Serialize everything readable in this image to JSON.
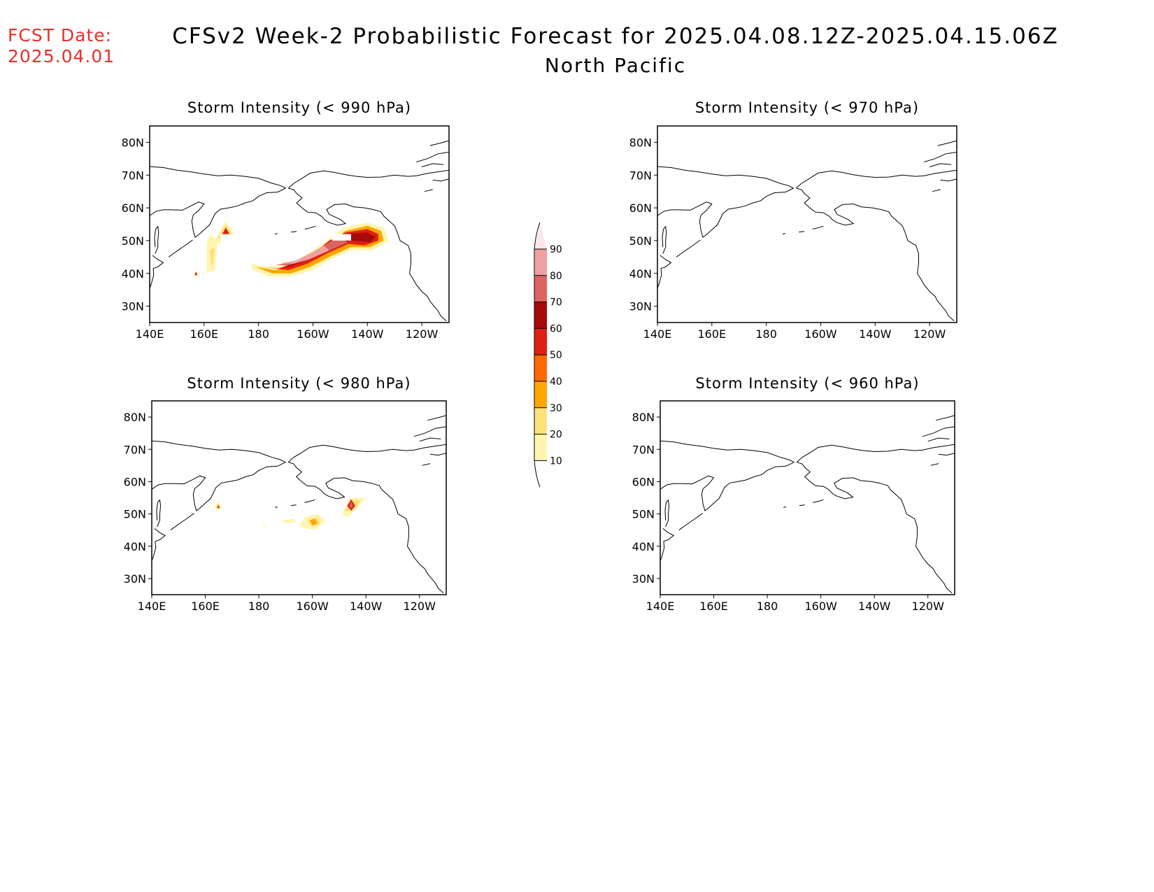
{
  "fcst_date": {
    "label": "FCST Date:",
    "value": "2025.04.01"
  },
  "title": "CFSv2 Week-2 Probabilistic Forecast for 2025.04.08.12Z-2025.04.15.06Z",
  "subtitle": "North Pacific",
  "map_extent": {
    "lon_min": 140,
    "lon_max": 250,
    "lat_min": 25,
    "lat_max": 85
  },
  "lon_ticks": [
    {
      "value": 140,
      "label": "140E"
    },
    {
      "value": 160,
      "label": "160E"
    },
    {
      "value": 180,
      "label": "180"
    },
    {
      "value": 200,
      "label": "160W"
    },
    {
      "value": 220,
      "label": "140W"
    },
    {
      "value": 240,
      "label": "120W"
    }
  ],
  "lat_ticks": [
    {
      "value": 30,
      "label": "30N"
    },
    {
      "value": 40,
      "label": "40N"
    },
    {
      "value": 50,
      "label": "50N"
    },
    {
      "value": 60,
      "label": "60N"
    },
    {
      "value": 70,
      "label": "70N"
    },
    {
      "value": 80,
      "label": "80N"
    }
  ],
  "colorbar": {
    "levels": [
      10,
      20,
      30,
      40,
      50,
      60,
      70,
      80,
      90
    ],
    "labels": [
      "10",
      "20",
      "30",
      "40",
      "50",
      "60",
      "70",
      "80",
      "90"
    ],
    "colors": [
      "#fff5b0",
      "#fce27a",
      "#ffa500",
      "#ff6a00",
      "#e02010",
      "#a80a0a",
      "#dc6464",
      "#f0a0a0",
      "#fde6ea"
    ]
  },
  "panels": [
    {
      "id": "p990",
      "title": "Storm Intensity (< 990 hPa)",
      "regions": [
        {
          "level": 10,
          "poly": [
            [
              164,
              50
            ],
            [
              168,
              56
            ],
            [
              172,
              51
            ],
            [
              168,
              48
            ]
          ]
        },
        {
          "level": 20,
          "poly": [
            [
              165,
              51
            ],
            [
              168,
              55
            ],
            [
              171,
              51
            ],
            [
              168,
              49
            ]
          ]
        },
        {
          "level": 50,
          "poly": [
            [
              166,
              51
            ],
            [
              168,
              54
            ],
            [
              170,
              51
            ]
          ]
        },
        {
          "level": 10,
          "poly": [
            [
              161,
              49
            ],
            [
              162,
              52
            ],
            [
              165,
              50
            ],
            [
              164,
              41
            ],
            [
              161,
              40
            ]
          ]
        },
        {
          "level": 20,
          "poly": [
            [
              162,
              47
            ],
            [
              164,
              48
            ],
            [
              163,
              41
            ]
          ]
        },
        {
          "level": 10,
          "poly": [
            [
              177,
              43
            ],
            [
              184,
              42
            ],
            [
              192,
              43
            ],
            [
              198,
              46
            ],
            [
              205,
              50
            ],
            [
              211,
              54
            ],
            [
              220,
              55.5
            ],
            [
              226,
              54
            ],
            [
              228,
              50
            ],
            [
              222,
              47
            ],
            [
              214,
              47
            ],
            [
              206,
              44
            ],
            [
              200,
              41
            ],
            [
              192,
              39
            ],
            [
              184,
              39
            ],
            [
              178,
              41
            ]
          ]
        },
        {
          "level": 30,
          "poly": [
            [
              179,
              42
            ],
            [
              186,
              41
            ],
            [
              193,
              42
            ],
            [
              199,
              45
            ],
            [
              206,
              49
            ],
            [
              212,
              53
            ],
            [
              220,
              54.5
            ],
            [
              225,
              53
            ],
            [
              226,
              50
            ],
            [
              221,
              48
            ],
            [
              214,
              48
            ],
            [
              206,
              45
            ],
            [
              199,
              42
            ],
            [
              192,
              40
            ],
            [
              185,
              40
            ]
          ]
        },
        {
          "level": 50,
          "poly": [
            [
              181,
              42
            ],
            [
              187,
              41.5
            ],
            [
              194,
              43
            ],
            [
              200,
              46
            ],
            [
              206,
              50
            ],
            [
              212,
              52.5
            ],
            [
              220,
              53.5
            ],
            [
              224,
              52
            ],
            [
              224,
              50
            ],
            [
              219,
              48.5
            ],
            [
              213,
              49
            ],
            [
              205,
              46
            ],
            [
              198,
              43
            ],
            [
              191,
              41
            ]
          ]
        },
        {
          "level": 60,
          "poly": [
            [
              183,
              42
            ],
            [
              189,
              42
            ],
            [
              196,
              44
            ],
            [
              202,
              47
            ],
            [
              207,
              50
            ],
            [
              211,
              52
            ],
            [
              220,
              52.5
            ],
            [
              223,
              51
            ],
            [
              221,
              49.5
            ],
            [
              214,
              50
            ],
            [
              205,
              47
            ],
            [
              198,
              44
            ],
            [
              191,
              42
            ]
          ]
        },
        {
          "level": 70,
          "poly": [
            [
              186,
              42.5
            ],
            [
              193,
              43.5
            ],
            [
              200,
              46.5
            ],
            [
              205,
              49
            ],
            [
              209,
              51
            ],
            [
              213,
              49.5
            ],
            [
              206,
              47
            ],
            [
              198,
              44
            ],
            [
              191,
              42.5
            ]
          ]
        },
        {
          "level": 80,
          "poly": [
            [
              188,
              43
            ],
            [
              194,
              44
            ],
            [
              200,
              46.5
            ],
            [
              204,
              48.5
            ],
            [
              206,
              47
            ],
            [
              199,
              44.5
            ],
            [
              193,
              43
            ]
          ]
        },
        {
          "level": 10,
          "poly": [
            [
              156,
              39
            ],
            [
              157,
              41
            ],
            [
              158,
              39
            ]
          ]
        },
        {
          "level": 50,
          "poly": [
            [
              156.5,
              39.5
            ],
            [
              157,
              40.5
            ],
            [
              157.6,
              39.5
            ]
          ]
        }
      ],
      "masks": [
        [
          [
            166,
            52
          ],
          [
            172,
            52
          ],
          [
            172,
            45
          ],
          [
            166,
            45
          ]
        ],
        [
          [
            173,
            53
          ],
          [
            185,
            53
          ],
          [
            185,
            45
          ],
          [
            173,
            45
          ]
        ],
        [
          [
            168,
            47
          ],
          [
            176,
            47
          ],
          [
            176,
            41
          ],
          [
            168,
            41
          ]
        ],
        [
          [
            207,
            52
          ],
          [
            214,
            52
          ],
          [
            214,
            50
          ],
          [
            207,
            50
          ]
        ]
      ]
    },
    {
      "id": "p970",
      "title": "Storm Intensity (< 970 hPa)",
      "regions": [],
      "masks": []
    },
    {
      "id": "p980",
      "title": "Storm Intensity (< 980 hPa)",
      "regions": [
        {
          "level": 10,
          "poly": [
            [
              164,
              53
            ],
            [
              165,
              54
            ],
            [
              166,
              52
            ],
            [
              164,
              51
            ]
          ]
        },
        {
          "level": 30,
          "poly": [
            [
              164,
              52
            ],
            [
              165,
              53
            ],
            [
              165.5,
              51.5
            ]
          ]
        },
        {
          "level": 50,
          "poly": [
            [
              164.5,
              52
            ],
            [
              165,
              52.7
            ],
            [
              165.3,
              51.8
            ]
          ]
        },
        {
          "level": 10,
          "poly": [
            [
              197,
              49
            ],
            [
              202,
              50
            ],
            [
              205,
              48
            ],
            [
              201,
              45
            ],
            [
              195,
              46
            ]
          ]
        },
        {
          "level": 20,
          "poly": [
            [
              198,
              48
            ],
            [
              202,
              49
            ],
            [
              203,
              47
            ],
            [
              200,
              46
            ]
          ]
        },
        {
          "level": 30,
          "poly": [
            [
              199,
              48
            ],
            [
              201,
              48.5
            ],
            [
              202,
              47
            ],
            [
              200,
              46.5
            ]
          ]
        },
        {
          "level": 10,
          "poly": [
            [
              211,
              50
            ],
            [
              214,
              55
            ],
            [
              220,
              55
            ],
            [
              216,
              51
            ],
            [
              213,
              49
            ]
          ]
        },
        {
          "level": 20,
          "poly": [
            [
              212,
              51
            ],
            [
              215,
              54.5
            ],
            [
              218,
              54
            ],
            [
              215,
              51
            ]
          ]
        },
        {
          "level": 50,
          "poly": [
            [
              213,
              52.5
            ],
            [
              214.5,
              54.5
            ],
            [
              216,
              52.5
            ],
            [
              214.5,
              51
            ]
          ]
        },
        {
          "level": 70,
          "poly": [
            [
              213.8,
              52.6
            ],
            [
              214.5,
              53.8
            ],
            [
              215.2,
              52.6
            ],
            [
              214.5,
              51.7
            ]
          ]
        },
        {
          "level": 10,
          "poly": [
            [
              181,
              46
            ],
            [
              182,
              46.5
            ],
            [
              183,
              46
            ]
          ]
        },
        {
          "level": 10,
          "poly": [
            [
              189,
              48
            ],
            [
              193,
              48.5
            ],
            [
              194,
              47.5
            ],
            [
              190,
              47
            ]
          ]
        }
      ],
      "masks": []
    },
    {
      "id": "p960",
      "title": "Storm Intensity (< 960 hPa)",
      "regions": [],
      "masks": []
    }
  ]
}
